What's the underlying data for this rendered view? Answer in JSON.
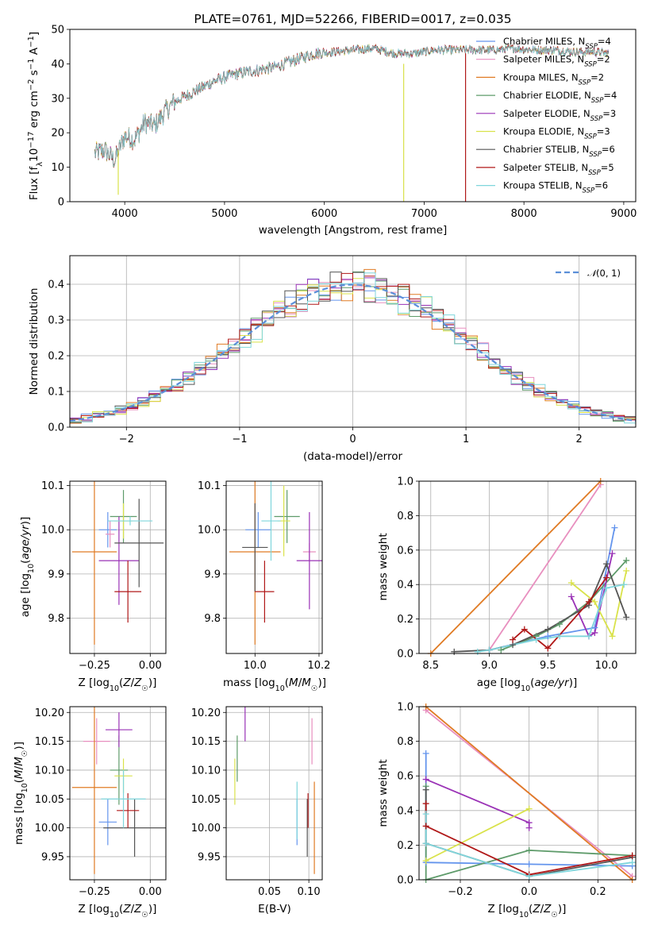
{
  "colors": {
    "Chabrier MILES": "#6495ed",
    "Salpeter MILES": "#e88fbf",
    "Kroupa MILES": "#e07b24",
    "Chabrier ELODIE": "#5e9b6a",
    "Salpeter ELODIE": "#9a32b6",
    "Kroupa ELODIE": "#d9e24a",
    "Chabrier STELIB": "#555555",
    "Salpeter STELIB": "#b01818",
    "Kroupa STELIB": "#7fd6dc"
  },
  "chart_data": [
    {
      "type": "line",
      "title": "PLATE=0761, MJD=52266, FIBERID=0017, z=0.035",
      "xlabel": "wavelength [Angstrom, rest frame]",
      "ylabel": "Flux [f_λ 10^-17 erg cm^-2 s^-1 A^-1]",
      "xlim": [
        3450,
        9120
      ],
      "ylim": [
        0,
        50
      ],
      "xticks": [
        4000,
        5000,
        6000,
        7000,
        8000,
        9000
      ],
      "yticks": [
        0,
        10,
        20,
        30,
        40,
        50
      ],
      "grid": false,
      "legend_position": "right",
      "legend": [
        {
          "label": "Chabrier MILES, N",
          "sub": "SSP",
          "suffix": "=4"
        },
        {
          "label": "Salpeter MILES, N",
          "sub": "SSP",
          "suffix": "=2"
        },
        {
          "label": "Kroupa MILES, N",
          "sub": "SSP",
          "suffix": "=2"
        },
        {
          "label": "Chabrier ELODIE, N",
          "sub": "SSP",
          "suffix": "=4"
        },
        {
          "label": "Salpeter ELODIE, N",
          "sub": "SSP",
          "suffix": "=3"
        },
        {
          "label": "Kroupa ELODIE, N",
          "sub": "SSP",
          "suffix": "=3"
        },
        {
          "label": "Chabrier STELIB, N",
          "sub": "SSP",
          "suffix": "=6"
        },
        {
          "label": "Salpeter STELIB, N",
          "sub": "SSP",
          "suffix": "=5"
        },
        {
          "label": "Kroupa STELIB, N",
          "sub": "SSP",
          "suffix": "=6"
        }
      ],
      "continuum": {
        "x": [
          3700,
          3800,
          3900,
          4000,
          4100,
          4200,
          4300,
          4400,
          4500,
          4700,
          4900,
          5100,
          5300,
          5500,
          5700,
          5900,
          6100,
          6300,
          6500,
          6700,
          6900,
          7100,
          7300,
          7500,
          7700,
          7900,
          8100,
          8300,
          8500,
          8700,
          8850
        ],
        "y": [
          14,
          15,
          12,
          19,
          18,
          23,
          22,
          26,
          29,
          32,
          35,
          37,
          38,
          39,
          41,
          43,
          43.5,
          44,
          44.5,
          43,
          43,
          44,
          44,
          44,
          44,
          44.5,
          44,
          44,
          43.5,
          43.5,
          43
        ]
      }
    },
    {
      "type": "bar",
      "xlabel": "(data-model)/error",
      "ylabel": "Normed distribution",
      "xlim": [
        -2.5,
        2.5
      ],
      "ylim": [
        0,
        0.48
      ],
      "xticks": [
        -2,
        -1,
        0,
        1,
        2
      ],
      "yticks": [
        0.0,
        0.1,
        0.2,
        0.3,
        0.4
      ],
      "grid": true,
      "legend_position": "top-right",
      "reference_curve": {
        "name": "N(0,1)",
        "function": "gaussian",
        "mean": 0,
        "sigma": 1
      }
    },
    {
      "type": "scatter",
      "xlabel": "Z [log10(Z/Z☉)]",
      "ylabel": "age [log10(age/yr)]",
      "xlim": [
        -0.36,
        0.07
      ],
      "ylim": [
        9.72,
        10.11
      ],
      "xticks": [
        -0.25,
        0.0
      ],
      "yticks": [
        9.8,
        9.9,
        10.0,
        10.1
      ],
      "grid": true,
      "series": [
        {
          "name": "Chabrier MILES",
          "x": -0.19,
          "y": 10.0,
          "xerr": 0.04,
          "yerr": 0.04
        },
        {
          "name": "Salpeter MILES",
          "x": -0.18,
          "y": 9.99,
          "xerr": 0.02,
          "yerr": 0.03
        },
        {
          "name": "Kroupa MILES",
          "x": -0.25,
          "y": 9.95,
          "xerr": 0.1,
          "yerr": 0.21
        },
        {
          "name": "Chabrier ELODIE",
          "x": -0.12,
          "y": 10.03,
          "xerr": 0.06,
          "yerr": 0.06
        },
        {
          "name": "Salpeter ELODIE",
          "x": -0.14,
          "y": 9.93,
          "xerr": 0.09,
          "yerr": 0.1
        },
        {
          "name": "Kroupa ELODIE",
          "x": -0.12,
          "y": 10.02,
          "xerr": 0.04,
          "yerr": 0.04
        },
        {
          "name": "Chabrier STELIB",
          "x": -0.05,
          "y": 9.97,
          "xerr": 0.11,
          "yerr": 0.1
        },
        {
          "name": "Salpeter STELIB",
          "x": -0.1,
          "y": 9.86,
          "xerr": 0.06,
          "yerr": 0.07
        },
        {
          "name": "Kroupa STELIB",
          "x": -0.09,
          "y": 10.02,
          "xerr": 0.1,
          "yerr": 0.01
        }
      ]
    },
    {
      "type": "scatter",
      "xlabel": "mass [log10(M/M☉)]",
      "ylabel": "",
      "xlim": [
        9.91,
        10.21
      ],
      "ylim": [
        9.72,
        10.11
      ],
      "xticks": [
        10.0,
        10.2
      ],
      "yticks": [
        9.8,
        9.9,
        10.0,
        10.1
      ],
      "grid": true,
      "series": [
        {
          "name": "Chabrier MILES",
          "x": 10.01,
          "y": 10.0,
          "xerr": 0.04,
          "yerr": 0.04
        },
        {
          "name": "Salpeter MILES",
          "x": 10.17,
          "y": 9.95,
          "xerr": 0.02,
          "yerr": 0.02
        },
        {
          "name": "Kroupa MILES",
          "x": 10.0,
          "y": 9.95,
          "xerr": 0.08,
          "yerr": 0.21
        },
        {
          "name": "Chabrier ELODIE",
          "x": 10.1,
          "y": 10.03,
          "xerr": 0.04,
          "yerr": 0.06
        },
        {
          "name": "Salpeter ELODIE",
          "x": 10.17,
          "y": 9.93,
          "xerr": 0.04,
          "yerr": 0.11
        },
        {
          "name": "Kroupa ELODIE",
          "x": 10.09,
          "y": 10.02,
          "xerr": 0.02,
          "yerr": 0.08
        },
        {
          "name": "Chabrier STELIB",
          "x": 10.0,
          "y": 9.96,
          "xerr": 0.04,
          "yerr": 0.1
        },
        {
          "name": "Salpeter STELIB",
          "x": 10.03,
          "y": 9.86,
          "xerr": 0.03,
          "yerr": 0.07
        },
        {
          "name": "Kroupa STELIB",
          "x": 10.05,
          "y": 10.02,
          "xerr": 0.03,
          "yerr": 0.09
        }
      ]
    },
    {
      "type": "line",
      "xlabel": "age [log10(age/yr)]",
      "ylabel": "mass weight",
      "xlim": [
        8.4,
        10.25
      ],
      "ylim": [
        0,
        1
      ],
      "xticks": [
        8.5,
        9.0,
        9.5,
        10.0
      ],
      "yticks": [
        0.0,
        0.2,
        0.4,
        0.6,
        0.8,
        1.0
      ],
      "grid": true,
      "series": [
        {
          "name": "Chabrier MILES",
          "x": [
            9.0,
            9.5,
            9.9,
            10.07
          ],
          "y": [
            0.02,
            0.1,
            0.15,
            0.73
          ]
        },
        {
          "name": "Salpeter MILES",
          "x": [
            9.0,
            9.95
          ],
          "y": [
            0.02,
            0.98
          ]
        },
        {
          "name": "Kroupa MILES",
          "x": [
            8.5,
            9.95
          ],
          "y": [
            0.0,
            1.0
          ]
        },
        {
          "name": "Chabrier ELODIE",
          "x": [
            9.1,
            9.4,
            9.6,
            9.85,
            10.17
          ],
          "y": [
            0.02,
            0.1,
            0.17,
            0.3,
            0.54
          ]
        },
        {
          "name": "Salpeter ELODIE",
          "x": [
            9.7,
            9.85,
            9.9,
            10.05
          ],
          "y": [
            0.33,
            0.1,
            0.12,
            0.58
          ]
        },
        {
          "name": "Kroupa ELODIE",
          "x": [
            9.7,
            9.9,
            10.05,
            10.17
          ],
          "y": [
            0.41,
            0.3,
            0.1,
            0.48
          ]
        },
        {
          "name": "Chabrier STELIB",
          "x": [
            8.7,
            9.0,
            9.2,
            9.5,
            9.85,
            10.0,
            10.17
          ],
          "y": [
            0.01,
            0.02,
            0.05,
            0.14,
            0.28,
            0.52,
            0.21
          ]
        },
        {
          "name": "Salpeter STELIB",
          "x": [
            9.2,
            9.3,
            9.5,
            9.85,
            10.0
          ],
          "y": [
            0.08,
            0.14,
            0.03,
            0.3,
            0.44
          ]
        },
        {
          "name": "Kroupa STELIB",
          "x": [
            8.9,
            9.0,
            9.4,
            9.6,
            9.85,
            10.0,
            10.15
          ],
          "y": [
            0.01,
            0.02,
            0.08,
            0.1,
            0.1,
            0.38,
            0.4
          ]
        }
      ]
    },
    {
      "type": "scatter",
      "xlabel": "Z [log10(Z/Z☉)]",
      "ylabel": "mass [log10(M/M☉)]",
      "xlim": [
        -0.36,
        0.07
      ],
      "ylim": [
        9.91,
        10.21
      ],
      "xticks": [
        -0.25,
        0.0
      ],
      "yticks": [
        9.95,
        10.0,
        10.05,
        10.1,
        10.15,
        10.2
      ],
      "grid": true,
      "series": [
        {
          "name": "Chabrier MILES",
          "x": -0.19,
          "y": 10.01,
          "xerr": 0.04,
          "yerr": 0.04
        },
        {
          "name": "Salpeter MILES",
          "x": -0.24,
          "y": 10.15,
          "xerr": 0.06,
          "yerr": 0.04
        },
        {
          "name": "Kroupa MILES",
          "x": -0.25,
          "y": 10.07,
          "xerr": 0.1,
          "yerr": 0.15
        },
        {
          "name": "Chabrier ELODIE",
          "x": -0.14,
          "y": 10.1,
          "xerr": 0.04,
          "yerr": 0.06
        },
        {
          "name": "Salpeter ELODIE",
          "x": -0.14,
          "y": 10.17,
          "xerr": 0.06,
          "yerr": 0.03
        },
        {
          "name": "Kroupa ELODIE",
          "x": -0.12,
          "y": 10.09,
          "xerr": 0.04,
          "yerr": 0.03
        },
        {
          "name": "Chabrier STELIB",
          "x": -0.07,
          "y": 10.0,
          "xerr": 0.14,
          "yerr": 0.05
        },
        {
          "name": "Salpeter STELIB",
          "x": -0.1,
          "y": 10.03,
          "xerr": 0.05,
          "yerr": 0.03
        },
        {
          "name": "Kroupa STELIB",
          "x": -0.12,
          "y": 10.05,
          "xerr": 0.1,
          "yerr": 0.05
        }
      ]
    },
    {
      "type": "scatter",
      "xlabel": "E(B-V)",
      "ylabel": "",
      "xlim": [
        -0.005,
        0.117
      ],
      "ylim": [
        9.91,
        10.21
      ],
      "xticks": [
        0.05,
        0.1
      ],
      "yticks": [
        9.95,
        10.0,
        10.05,
        10.1,
        10.15,
        10.2
      ],
      "grid": true,
      "series": [
        {
          "name": "Chabrier MILES",
          "x": 0.085,
          "y": 10.01,
          "xerr": 0.0,
          "yerr": 0.04
        },
        {
          "name": "Salpeter MILES",
          "x": 0.104,
          "y": 10.15,
          "xerr": 0.0,
          "yerr": 0.04
        },
        {
          "name": "Kroupa MILES",
          "x": 0.107,
          "y": 10.0,
          "xerr": 0.0,
          "yerr": 0.08
        },
        {
          "name": "Chabrier ELODIE",
          "x": 0.009,
          "y": 10.12,
          "xerr": 0.0,
          "yerr": 0.04
        },
        {
          "name": "Salpeter ELODIE",
          "x": 0.019,
          "y": 10.18,
          "xerr": 0.0,
          "yerr": 0.03
        },
        {
          "name": "Kroupa ELODIE",
          "x": 0.006,
          "y": 10.08,
          "xerr": 0.0,
          "yerr": 0.04
        },
        {
          "name": "Chabrier STELIB",
          "x": 0.098,
          "y": 10.0,
          "xerr": 0.0,
          "yerr": 0.05
        },
        {
          "name": "Salpeter STELIB",
          "x": 0.099,
          "y": 10.03,
          "xerr": 0.0,
          "yerr": 0.03
        },
        {
          "name": "Kroupa STELIB",
          "x": 0.085,
          "y": 10.03,
          "xerr": 0.0,
          "yerr": 0.05
        }
      ]
    },
    {
      "type": "line",
      "xlabel": "Z [log10(Z/Z☉)]",
      "ylabel": "mass weight",
      "xlim": [
        -0.32,
        0.31
      ],
      "ylim": [
        0,
        1
      ],
      "xticks": [
        -0.2,
        0.0,
        0.2
      ],
      "yticks": [
        0.0,
        0.2,
        0.4,
        0.6,
        0.8,
        1.0
      ],
      "grid": true,
      "series": [
        {
          "name": "Chabrier MILES",
          "x": [
            -0.3,
            -0.3,
            0.0,
            0.3
          ],
          "y": [
            0.73,
            0.1,
            0.09,
            0.08
          ]
        },
        {
          "name": "Salpeter MILES",
          "x": [
            -0.3,
            0.3
          ],
          "y": [
            0.98,
            0.02
          ]
        },
        {
          "name": "Kroupa MILES",
          "x": [
            -0.3,
            0.3
          ],
          "y": [
            1.0,
            0.0
          ]
        },
        {
          "name": "Chabrier ELODIE",
          "x": [
            -0.3,
            -0.3,
            0.0,
            0.3
          ],
          "y": [
            0.54,
            0.0,
            0.17,
            0.14
          ]
        },
        {
          "name": "Salpeter ELODIE",
          "x": [
            -0.3,
            0.0,
            0.0
          ],
          "y": [
            0.58,
            0.33,
            0.3
          ]
        },
        {
          "name": "Kroupa ELODIE",
          "x": [
            -0.3,
            0.0
          ],
          "y": [
            0.11,
            0.41
          ]
        },
        {
          "name": "Chabrier STELIB",
          "x": [
            -0.3,
            -0.3,
            0.0,
            0.3
          ],
          "y": [
            0.52,
            0.21,
            0.02,
            0.13
          ]
        },
        {
          "name": "Salpeter STELIB",
          "x": [
            -0.3,
            -0.3,
            0.0,
            0.3
          ],
          "y": [
            0.44,
            0.31,
            0.03,
            0.14
          ]
        },
        {
          "name": "Kroupa STELIB",
          "x": [
            -0.3,
            -0.3,
            0.0,
            0.3
          ],
          "y": [
            0.38,
            0.21,
            0.02,
            0.1
          ]
        }
      ]
    }
  ]
}
